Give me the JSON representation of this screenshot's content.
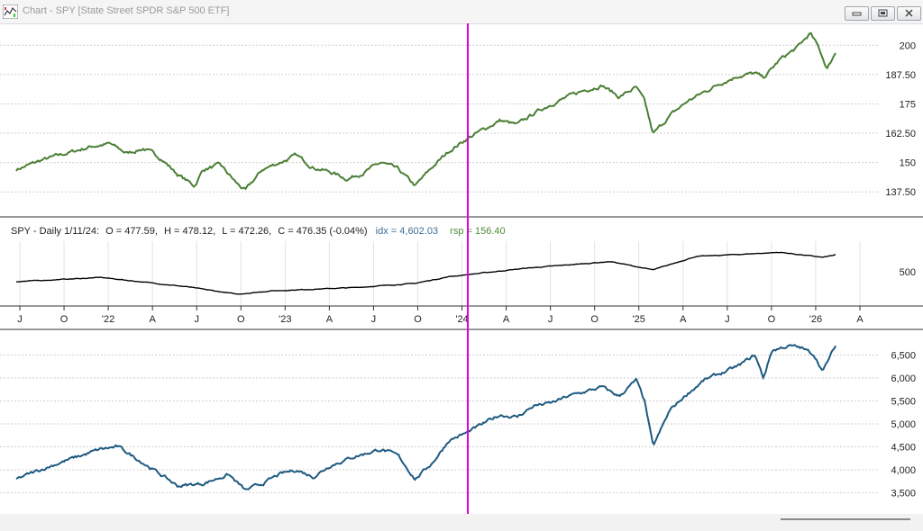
{
  "window": {
    "title": "Chart - SPY [State Street SPDR S&P 500 ETF]"
  },
  "top_panel": {
    "y_ticks": [
      "200",
      "187.50",
      "175",
      "162.50",
      "150",
      "137.50"
    ],
    "color": "#4a7f35"
  },
  "middle_panel": {
    "info": {
      "prefix": "SPY - Daily 1/11/24:",
      "open": "O = 477.59,",
      "high": "H = 478.12,",
      "low": "L = 472.26,",
      "close": "C = 476.35 (-0.04%)",
      "idx": "idx = 4,602.03",
      "rsp": "rsp = 156.40"
    },
    "y_ticks": [
      "500"
    ],
    "colors": {
      "idx": "#3c6e96",
      "rsp": "#4f8a36"
    }
  },
  "x_axis": {
    "labels": [
      "J",
      "O",
      "'22",
      "A",
      "J",
      "O",
      "'23",
      "A",
      "J",
      "O",
      "'24",
      "A",
      "J",
      "O",
      "'25",
      "A",
      "J",
      "O",
      "'26",
      "A"
    ]
  },
  "bottom_panel": {
    "y_ticks": [
      "6,500",
      "6,000",
      "5,500",
      "5,000",
      "4,500",
      "4,000",
      "3,500"
    ],
    "color": "#1e5a80"
  },
  "cursor": {
    "color": "#e000e0"
  },
  "chart_data": [
    {
      "type": "line",
      "title": "",
      "series": [
        {
          "name": "rsp",
          "points": [
            [
              0,
              147
            ],
            [
              0.03,
              151
            ],
            [
              0.06,
              154
            ],
            [
              0.09,
              157
            ],
            [
              0.11,
              158
            ],
            [
              0.13,
              154
            ],
            [
              0.15,
              156
            ],
            [
              0.17,
              152
            ],
            [
              0.19,
              145
            ],
            [
              0.21,
              140
            ],
            [
              0.22,
              147
            ],
            [
              0.24,
              149
            ],
            [
              0.26,
              141
            ],
            [
              0.27,
              138
            ],
            [
              0.29,
              147
            ],
            [
              0.31,
              150
            ],
            [
              0.33,
              153
            ],
            [
              0.35,
              148
            ],
            [
              0.37,
              146
            ],
            [
              0.39,
              143
            ],
            [
              0.41,
              146
            ],
            [
              0.43,
              150
            ],
            [
              0.45,
              147
            ],
            [
              0.47,
              140
            ],
            [
              0.49,
              148
            ],
            [
              0.51,
              155
            ],
            [
              0.53,
              160
            ],
            [
              0.55,
              164
            ],
            [
              0.57,
              168
            ],
            [
              0.59,
              166
            ],
            [
              0.61,
              171
            ],
            [
              0.63,
              175
            ],
            [
              0.65,
              178
            ],
            [
              0.67,
              181
            ],
            [
              0.69,
              183
            ],
            [
              0.71,
              178
            ],
            [
              0.73,
              182
            ],
            [
              0.74,
              176
            ],
            [
              0.75,
              162
            ],
            [
              0.77,
              170
            ],
            [
              0.79,
              176
            ],
            [
              0.81,
              180
            ],
            [
              0.83,
              184
            ],
            [
              0.85,
              187
            ],
            [
              0.87,
              188
            ],
            [
              0.88,
              186
            ],
            [
              0.9,
              194
            ],
            [
              0.92,
              199
            ],
            [
              0.935,
              205
            ],
            [
              0.945,
              199
            ],
            [
              0.955,
              190
            ],
            [
              0.965,
              197
            ]
          ]
        }
      ],
      "y_ticks": [
        137.5,
        150,
        162.5,
        175,
        187.5,
        200
      ],
      "ylim": [
        128,
        207
      ]
    },
    {
      "type": "line",
      "title": "",
      "series": [
        {
          "name": "SPY",
          "points": [
            [
              0,
              440
            ],
            [
              0.1,
              465
            ],
            [
              0.2,
              410
            ],
            [
              0.26,
              365
            ],
            [
              0.3,
              385
            ],
            [
              0.4,
              405
            ],
            [
              0.47,
              430
            ],
            [
              0.51,
              470
            ],
            [
              0.6,
              520
            ],
            [
              0.7,
              560
            ],
            [
              0.75,
              510
            ],
            [
              0.8,
              590
            ],
            [
              0.9,
              615
            ],
            [
              0.95,
              585
            ],
            [
              0.965,
              600
            ]
          ]
        }
      ],
      "y_ticks": [
        500
      ],
      "ylim": [
        300,
        660
      ]
    },
    {
      "type": "line",
      "title": "",
      "series": [
        {
          "name": "idx",
          "points": [
            [
              0,
              3800
            ],
            [
              0.05,
              4150
            ],
            [
              0.1,
              4450
            ],
            [
              0.12,
              4500
            ],
            [
              0.15,
              4150
            ],
            [
              0.19,
              3650
            ],
            [
              0.22,
              3700
            ],
            [
              0.25,
              3900
            ],
            [
              0.27,
              3550
            ],
            [
              0.29,
              3700
            ],
            [
              0.31,
              3900
            ],
            [
              0.33,
              4000
            ],
            [
              0.35,
              3850
            ],
            [
              0.37,
              4100
            ],
            [
              0.4,
              4300
            ],
            [
              0.43,
              4450
            ],
            [
              0.45,
              4300
            ],
            [
              0.47,
              3800
            ],
            [
              0.49,
              4150
            ],
            [
              0.51,
              4650
            ],
            [
              0.53,
              4800
            ],
            [
              0.55,
              5000
            ],
            [
              0.57,
              5200
            ],
            [
              0.59,
              5150
            ],
            [
              0.61,
              5400
            ],
            [
              0.63,
              5450
            ],
            [
              0.65,
              5600
            ],
            [
              0.67,
              5700
            ],
            [
              0.69,
              5800
            ],
            [
              0.71,
              5600
            ],
            [
              0.73,
              5950
            ],
            [
              0.74,
              5500
            ],
            [
              0.75,
              4500
            ],
            [
              0.77,
              5300
            ],
            [
              0.79,
              5650
            ],
            [
              0.81,
              5950
            ],
            [
              0.83,
              6100
            ],
            [
              0.85,
              6250
            ],
            [
              0.87,
              6500
            ],
            [
              0.88,
              6000
            ],
            [
              0.89,
              6600
            ],
            [
              0.91,
              6700
            ],
            [
              0.925,
              6650
            ],
            [
              0.94,
              6500
            ],
            [
              0.95,
              6150
            ],
            [
              0.965,
              6700
            ]
          ]
        }
      ],
      "y_ticks": [
        3500,
        4000,
        4500,
        5000,
        5500,
        6000,
        6500
      ],
      "ylim": [
        3100,
        6900
      ]
    }
  ]
}
